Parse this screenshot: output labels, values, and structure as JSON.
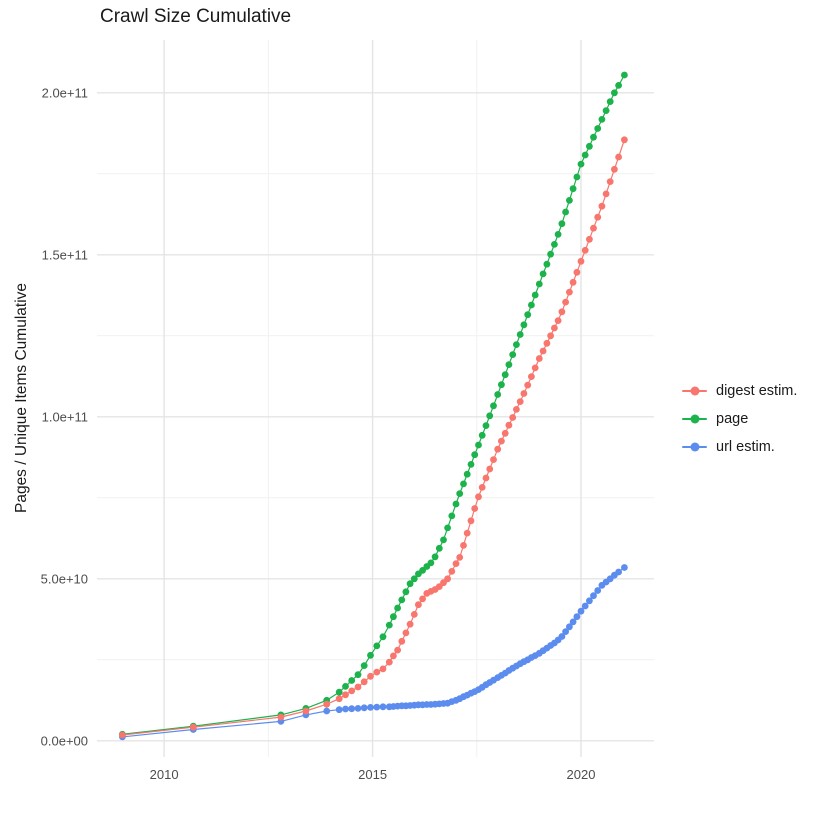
{
  "title": "Crawl Size Cumulative",
  "axes": {
    "y_title": "Pages / Unique Items Cumulative",
    "x_tick_labels": [
      "2010",
      "2015",
      "2020"
    ],
    "y_tick_labels": [
      "0.0e+00",
      "5.0e+10",
      "1.0e+11",
      "1.5e+11",
      "2.0e+11"
    ]
  },
  "style_colors": {
    "grid_major": "#e4e4e4",
    "grid_minor": "#f1f1f1",
    "tick_text": "#4d4d4d",
    "title_text": "#1a1a1a"
  },
  "chart_data": {
    "type": "line",
    "title": "Crawl Size Cumulative",
    "xlabel": "",
    "ylabel": "Pages / Unique Items Cumulative",
    "legend_position": "right",
    "grid": "on",
    "values_unit": "1e9 (billions of pages / unique items)",
    "x_domain": [
      2008.39,
      2021.75
    ],
    "y_domain": [
      -5,
      216.3
    ],
    "x_tick_values": [
      2010,
      2015,
      2020
    ],
    "y_tick_values": [
      0,
      50,
      100,
      150,
      200
    ],
    "x_minor": [
      2012.5,
      2017.5
    ],
    "y_minor": [
      25,
      75,
      125,
      175
    ],
    "x": [
      2009.0,
      2010.7,
      2012.8,
      2013.4,
      2013.9,
      2014.2,
      2014.35,
      2014.5,
      2014.65,
      2014.8,
      2014.95,
      2015.1,
      2015.25,
      2015.4,
      2015.5,
      2015.6,
      2015.7,
      2015.8,
      2015.9,
      2016.0,
      2016.1,
      2016.2,
      2016.3,
      2016.4,
      2016.5,
      2016.6,
      2016.7,
      2016.8,
      2016.9,
      2017.0,
      2017.09,
      2017.18,
      2017.27,
      2017.36,
      2017.45,
      2017.54,
      2017.63,
      2017.72,
      2017.81,
      2017.9,
      2018.0,
      2018.09,
      2018.18,
      2018.27,
      2018.36,
      2018.45,
      2018.54,
      2018.63,
      2018.72,
      2018.81,
      2018.9,
      2019.0,
      2019.09,
      2019.18,
      2019.27,
      2019.36,
      2019.45,
      2019.54,
      2019.63,
      2019.72,
      2019.81,
      2019.9,
      2020.0,
      2020.1,
      2020.2,
      2020.3,
      2020.4,
      2020.5,
      2020.6,
      2020.7,
      2020.8,
      2020.9,
      2021.04
    ],
    "series": [
      {
        "name": "digest estim.",
        "color": "#F8766D",
        "values": [
          1.8,
          4.2,
          7.3,
          9.2,
          11.3,
          13,
          14.2,
          15.4,
          16.6,
          18.2,
          19.9,
          21.2,
          22.2,
          24.3,
          26.2,
          28,
          30.7,
          33.3,
          36,
          39,
          42,
          43.8,
          45.5,
          46.1,
          46.7,
          47.6,
          48.8,
          50,
          52.3,
          54.7,
          56.6,
          60.3,
          64.1,
          67.9,
          71.7,
          75.3,
          78.2,
          81.1,
          83.9,
          86.8,
          90,
          92.5,
          94.9,
          97.4,
          99.8,
          102.3,
          104.7,
          107.2,
          109.8,
          112.4,
          115.1,
          118,
          120.3,
          122.7,
          125,
          127.4,
          129.7,
          132.4,
          135.4,
          138.5,
          141.5,
          144.6,
          148,
          151.4,
          154.8,
          158.2,
          161.6,
          165,
          168.8,
          172.6,
          176.4,
          180.2,
          185.5
        ]
      },
      {
        "name": "page",
        "color": "#1CB24C",
        "values": [
          2,
          4.5,
          8,
          10,
          12.5,
          15,
          16.8,
          18.6,
          20.4,
          23.2,
          26.4,
          29.3,
          32.1,
          35.7,
          38.3,
          41,
          43.5,
          46,
          48.5,
          50,
          51.5,
          52.6,
          53.8,
          54.9,
          56.8,
          59.4,
          62,
          65.7,
          69.4,
          73.1,
          76.3,
          79.3,
          82.3,
          85.3,
          88.3,
          91.3,
          94.3,
          97.3,
          100.3,
          103.4,
          106.9,
          109.9,
          113,
          116.1,
          119.2,
          122.3,
          125.4,
          128.4,
          131.5,
          134.5,
          137.6,
          141,
          144.1,
          147.1,
          150.2,
          153.2,
          156.3,
          159.6,
          163.2,
          166.8,
          170.4,
          174,
          178,
          180.8,
          183.5,
          186.3,
          189,
          191.8,
          194.5,
          197.3,
          200,
          202.3,
          205.5
        ]
      },
      {
        "name": "url estim.",
        "color": "#5C8DEE",
        "values": [
          1.2,
          3.5,
          6,
          8,
          9.2,
          9.6,
          9.8,
          9.9,
          10,
          10.2,
          10.3,
          10.4,
          10.5,
          10.5,
          10.6,
          10.7,
          10.8,
          10.8,
          10.9,
          11,
          11.1,
          11.1,
          11.2,
          11.2,
          11.3,
          11.4,
          11.5,
          11.6,
          12.1,
          12.5,
          13,
          13.6,
          14.1,
          14.7,
          15.2,
          15.8,
          16.5,
          17.3,
          18,
          18.7,
          19.5,
          20.2,
          20.9,
          21.7,
          22.4,
          23.1,
          23.8,
          24.4,
          25,
          25.7,
          26.3,
          27,
          27.8,
          28.6,
          29.4,
          30.2,
          31.1,
          32.2,
          33.7,
          35.2,
          36.7,
          38.3,
          40,
          41.6,
          43.2,
          44.8,
          46.4,
          48,
          49,
          50,
          51.1,
          52.1,
          53.5
        ]
      }
    ]
  }
}
